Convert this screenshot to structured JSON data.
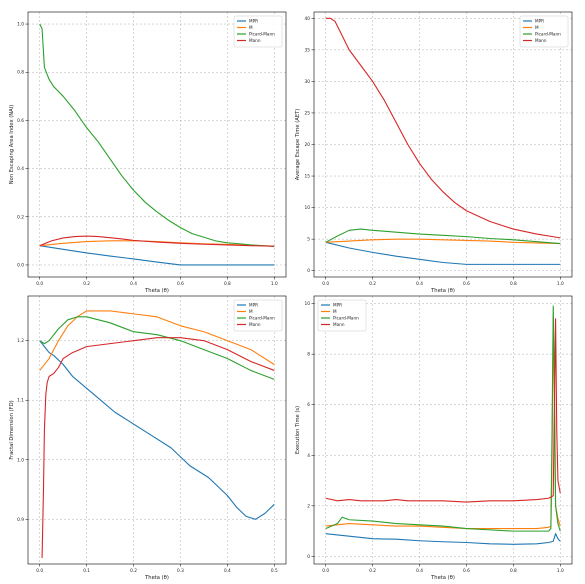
{
  "colors": {
    "MPR": "#1f77b4",
    "M": "#ff7f0e",
    "Picard-Mann": "#2ca02c",
    "Mann": "#d62728",
    "grid": "#b0b0b0",
    "axis": "#000000"
  },
  "chart_data": [
    {
      "type": "line",
      "xlabel": "Theta (θ)",
      "ylabel": "Non Escaping Area Index (NAI)",
      "xlim": [
        -0.05,
        1.05
      ],
      "ylim": [
        -0.05,
        1.05
      ],
      "xticks": [
        "0.0",
        "0.2",
        "0.4",
        "0.6",
        "0.8",
        "1.0"
      ],
      "yticks": [
        "0.0",
        "0.2",
        "0.4",
        "0.6",
        "0.8",
        "1.0"
      ],
      "xtick_values": [
        0,
        0.2,
        0.4,
        0.6,
        0.8,
        1.0
      ],
      "ytick_values": [
        0,
        0.2,
        0.4,
        0.6,
        0.8,
        1.0
      ],
      "grid": true,
      "legend": "top-right",
      "series": [
        {
          "name": "MPR",
          "x": [
            0,
            0.1,
            0.2,
            0.3,
            0.4,
            0.5,
            0.6,
            0.7,
            0.8,
            0.9,
            1.0
          ],
          "values": [
            0.08,
            0.065,
            0.05,
            0.037,
            0.025,
            0.012,
            0.0,
            0.0,
            0.0,
            0.0,
            0.0
          ]
        },
        {
          "name": "M",
          "x": [
            0,
            0.1,
            0.2,
            0.3,
            0.4,
            0.5,
            0.6,
            0.7,
            0.8,
            0.9,
            1.0
          ],
          "values": [
            0.08,
            0.09,
            0.097,
            0.1,
            0.1,
            0.097,
            0.092,
            0.088,
            0.085,
            0.082,
            0.078
          ]
        },
        {
          "name": "Picard-Mann",
          "x": [
            0,
            0.01,
            0.02,
            0.04,
            0.06,
            0.08,
            0.1,
            0.15,
            0.2,
            0.25,
            0.3,
            0.35,
            0.4,
            0.45,
            0.5,
            0.55,
            0.6,
            0.65,
            0.7,
            0.75,
            0.8,
            0.85,
            0.9,
            0.95,
            1.0
          ],
          "values": [
            1.0,
            0.98,
            0.82,
            0.77,
            0.74,
            0.72,
            0.7,
            0.64,
            0.57,
            0.51,
            0.44,
            0.37,
            0.31,
            0.26,
            0.22,
            0.185,
            0.155,
            0.13,
            0.115,
            0.1,
            0.092,
            0.088,
            0.083,
            0.08,
            0.077
          ]
        },
        {
          "name": "Mann",
          "x": [
            0,
            0.05,
            0.1,
            0.15,
            0.2,
            0.25,
            0.3,
            0.35,
            0.4,
            0.5,
            0.6,
            0.7,
            0.8,
            0.9,
            1.0
          ],
          "values": [
            0.08,
            0.1,
            0.112,
            0.118,
            0.12,
            0.118,
            0.113,
            0.108,
            0.102,
            0.095,
            0.09,
            0.086,
            0.083,
            0.08,
            0.078
          ]
        }
      ]
    },
    {
      "type": "line",
      "xlabel": "Theta (θ)",
      "ylabel": "Average Escape Time (AET)",
      "xlim": [
        -0.05,
        1.05
      ],
      "ylim": [
        -1,
        41
      ],
      "xticks": [
        "0.0",
        "0.2",
        "0.4",
        "0.6",
        "0.8",
        "1.0"
      ],
      "yticks": [
        "0",
        "5",
        "10",
        "15",
        "20",
        "25",
        "30",
        "35",
        "40"
      ],
      "xtick_values": [
        0,
        0.2,
        0.4,
        0.6,
        0.8,
        1.0
      ],
      "ytick_values": [
        0,
        5,
        10,
        15,
        20,
        25,
        30,
        35,
        40
      ],
      "grid": true,
      "legend": "top-right",
      "series": [
        {
          "name": "MPR",
          "x": [
            0,
            0.1,
            0.2,
            0.3,
            0.4,
            0.5,
            0.6,
            0.7,
            0.8,
            0.9,
            1.0
          ],
          "values": [
            4.5,
            3.6,
            2.9,
            2.3,
            1.8,
            1.3,
            1.0,
            1.0,
            1.0,
            1.0,
            1.0
          ]
        },
        {
          "name": "M",
          "x": [
            0,
            0.1,
            0.2,
            0.3,
            0.4,
            0.5,
            0.6,
            0.7,
            0.8,
            0.9,
            1.0
          ],
          "values": [
            4.5,
            4.7,
            4.9,
            5.0,
            5.0,
            4.9,
            4.8,
            4.7,
            4.5,
            4.4,
            4.3
          ]
        },
        {
          "name": "Picard-Mann",
          "x": [
            0,
            0.05,
            0.1,
            0.15,
            0.2,
            0.3,
            0.4,
            0.5,
            0.6,
            0.7,
            0.8,
            0.9,
            1.0
          ],
          "values": [
            4.5,
            5.5,
            6.4,
            6.6,
            6.4,
            6.1,
            5.8,
            5.6,
            5.4,
            5.1,
            4.9,
            4.6,
            4.3
          ]
        },
        {
          "name": "Mann",
          "x": [
            0,
            0.02,
            0.04,
            0.06,
            0.1,
            0.15,
            0.2,
            0.25,
            0.3,
            0.35,
            0.4,
            0.45,
            0.5,
            0.55,
            0.6,
            0.7,
            0.8,
            0.9,
            1.0
          ],
          "values": [
            40,
            40,
            39.5,
            38,
            35,
            32.5,
            30,
            27,
            23.5,
            20,
            17,
            14.5,
            12.5,
            10.8,
            9.5,
            7.8,
            6.6,
            5.8,
            5.2
          ]
        }
      ]
    },
    {
      "type": "line",
      "xlabel": "Theta (θ)",
      "ylabel": "Fractal Dimension (FD)",
      "xlim": [
        -0.025,
        0.525
      ],
      "ylim": [
        0.825,
        1.275
      ],
      "xticks": [
        "0.0",
        "0.1",
        "0.2",
        "0.3",
        "0.4",
        "0.5"
      ],
      "yticks": [
        "0.9",
        "1.0",
        "1.1",
        "1.2"
      ],
      "xtick_values": [
        0,
        0.1,
        0.2,
        0.3,
        0.4,
        0.5
      ],
      "ytick_values": [
        0.9,
        1.0,
        1.1,
        1.2
      ],
      "grid": true,
      "legend": "top-right",
      "series": [
        {
          "name": "MPR",
          "x": [
            0.0,
            0.01,
            0.02,
            0.03,
            0.05,
            0.07,
            0.1,
            0.13,
            0.16,
            0.2,
            0.24,
            0.28,
            0.32,
            0.36,
            0.4,
            0.42,
            0.44,
            0.46,
            0.48,
            0.5
          ],
          "values": [
            1.2,
            1.19,
            1.18,
            1.175,
            1.16,
            1.14,
            1.12,
            1.1,
            1.08,
            1.06,
            1.04,
            1.02,
            0.99,
            0.97,
            0.94,
            0.92,
            0.905,
            0.9,
            0.91,
            0.925
          ]
        },
        {
          "name": "M",
          "x": [
            0.0,
            0.02,
            0.04,
            0.06,
            0.08,
            0.1,
            0.15,
            0.2,
            0.25,
            0.3,
            0.35,
            0.4,
            0.45,
            0.5
          ],
          "values": [
            1.15,
            1.17,
            1.2,
            1.225,
            1.24,
            1.25,
            1.25,
            1.245,
            1.24,
            1.225,
            1.215,
            1.2,
            1.185,
            1.16
          ]
        },
        {
          "name": "Picard-Mann",
          "x": [
            0.0,
            0.01,
            0.02,
            0.04,
            0.06,
            0.08,
            0.1,
            0.15,
            0.2,
            0.25,
            0.3,
            0.35,
            0.4,
            0.45,
            0.5
          ],
          "values": [
            1.2,
            1.195,
            1.2,
            1.22,
            1.235,
            1.24,
            1.24,
            1.23,
            1.215,
            1.21,
            1.2,
            1.185,
            1.17,
            1.15,
            1.135
          ]
        },
        {
          "name": "Mann",
          "x": [
            0.005,
            0.008,
            0.01,
            0.013,
            0.016,
            0.02,
            0.03,
            0.04,
            0.05,
            0.07,
            0.1,
            0.15,
            0.2,
            0.25,
            0.3,
            0.35,
            0.4,
            0.45,
            0.5
          ],
          "values": [
            0.835,
            0.95,
            1.05,
            1.11,
            1.13,
            1.14,
            1.145,
            1.155,
            1.17,
            1.18,
            1.19,
            1.195,
            1.2,
            1.205,
            1.205,
            1.2,
            1.185,
            1.165,
            1.15
          ]
        }
      ]
    },
    {
      "type": "line",
      "xlabel": "Theta (θ)",
      "ylabel": "Execution Time (s)",
      "xlim": [
        -0.05,
        1.05
      ],
      "ylim": [
        -0.3,
        10.3
      ],
      "xticks": [
        "0.0",
        "0.2",
        "0.4",
        "0.6",
        "0.8",
        "1.0"
      ],
      "yticks": [
        "0",
        "2",
        "4",
        "6",
        "8",
        "10"
      ],
      "xtick_values": [
        0,
        0.2,
        0.4,
        0.6,
        0.8,
        1.0
      ],
      "ytick_values": [
        0,
        2,
        4,
        6,
        8,
        10
      ],
      "grid": true,
      "legend": "top-left",
      "series": [
        {
          "name": "MPR",
          "x": [
            0,
            0.1,
            0.2,
            0.3,
            0.4,
            0.5,
            0.6,
            0.7,
            0.8,
            0.9,
            0.95,
            0.97,
            0.98,
            0.99,
            1.0
          ],
          "values": [
            0.9,
            0.8,
            0.7,
            0.68,
            0.62,
            0.58,
            0.55,
            0.5,
            0.48,
            0.5,
            0.55,
            0.6,
            0.9,
            0.7,
            0.6
          ]
        },
        {
          "name": "M",
          "x": [
            0,
            0.05,
            0.1,
            0.2,
            0.3,
            0.4,
            0.5,
            0.6,
            0.7,
            0.8,
            0.9,
            0.95,
            0.96,
            0.965,
            0.97,
            0.975,
            0.98,
            0.99,
            1.0
          ],
          "values": [
            1.2,
            1.25,
            1.3,
            1.25,
            1.2,
            1.2,
            1.15,
            1.1,
            1.1,
            1.1,
            1.1,
            1.15,
            1.2,
            4.0,
            9.5,
            6.0,
            2.0,
            1.5,
            1.2
          ]
        },
        {
          "name": "Picard-Mann",
          "x": [
            0,
            0.05,
            0.07,
            0.1,
            0.2,
            0.3,
            0.4,
            0.5,
            0.6,
            0.7,
            0.8,
            0.9,
            0.95,
            0.96,
            0.965,
            0.97,
            0.975,
            0.98,
            0.99,
            1.0
          ],
          "values": [
            1.1,
            1.3,
            1.55,
            1.45,
            1.4,
            1.3,
            1.25,
            1.2,
            1.1,
            1.05,
            1.0,
            1.0,
            1.0,
            1.1,
            5.0,
            9.9,
            7.0,
            2.0,
            1.3,
            1.0
          ]
        },
        {
          "name": "Mann",
          "x": [
            0,
            0.05,
            0.1,
            0.15,
            0.2,
            0.25,
            0.3,
            0.35,
            0.4,
            0.5,
            0.6,
            0.7,
            0.8,
            0.9,
            0.95,
            0.97,
            0.975,
            0.98,
            0.985,
            0.99,
            1.0
          ],
          "values": [
            2.3,
            2.2,
            2.25,
            2.2,
            2.2,
            2.2,
            2.25,
            2.2,
            2.2,
            2.2,
            2.15,
            2.2,
            2.2,
            2.25,
            2.3,
            2.4,
            6.0,
            9.4,
            5.0,
            3.0,
            2.5
          ]
        }
      ]
    }
  ]
}
